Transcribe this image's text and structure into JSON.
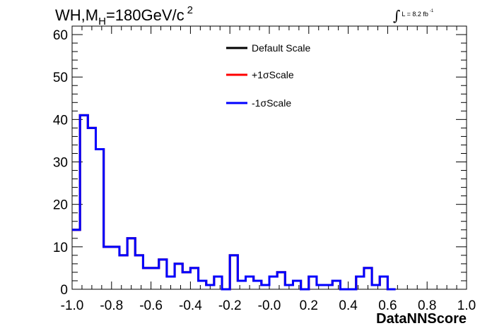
{
  "chart_data": {
    "type": "line",
    "title_main": "WH,M",
    "title_sub": "H",
    "title_rest": "=180GeV/c",
    "title_sup": "2",
    "lumi_text": "L = 8.2 fb",
    "lumi_sup": "-1",
    "xlabel": "DataNNScore",
    "ylabel": "",
    "xlim": [
      -1.0,
      1.0
    ],
    "ylim": [
      0,
      62
    ],
    "xticks": [
      "-1.0",
      "-0.8",
      "-0.6",
      "-0.4",
      "-0.2",
      "-0.0",
      "0.2",
      "0.4",
      "0.6",
      "0.8",
      "1.0"
    ],
    "yticks": [
      "0",
      "10",
      "20",
      "30",
      "40",
      "50",
      "60"
    ],
    "bin_edges_start": -1.0,
    "bin_width": 0.04,
    "legend_position": "top-center",
    "series": [
      {
        "name": "Default Scale",
        "color": "#000000",
        "values": [
          14,
          41,
          38,
          33,
          10,
          10,
          8,
          12,
          8,
          5,
          5,
          7,
          3,
          6,
          4,
          5,
          2,
          1,
          3,
          0,
          8,
          2,
          3,
          2,
          1,
          3,
          4,
          1,
          2,
          0,
          3,
          1,
          1,
          2,
          0,
          0,
          3,
          5,
          1,
          3,
          0
        ]
      },
      {
        "name": "+1σScale",
        "color": "#ff0000",
        "values": [
          14,
          41,
          38,
          33,
          10,
          10,
          8,
          12,
          8,
          5,
          5,
          7,
          3,
          6,
          4,
          5,
          2,
          1,
          3,
          0,
          8,
          2,
          3,
          2,
          1,
          3,
          4,
          1,
          2,
          0,
          3,
          1,
          1,
          2,
          0,
          0,
          3,
          5,
          1,
          3,
          0
        ]
      },
      {
        "name": "-1σScale",
        "color": "#0000ff",
        "values": [
          14,
          41,
          38,
          33,
          10,
          10,
          8,
          12,
          8,
          5,
          5,
          7,
          3,
          6,
          4,
          5,
          2,
          1,
          3,
          0,
          8,
          2,
          3,
          2,
          1,
          3,
          4,
          1,
          2,
          0,
          3,
          1,
          1,
          2,
          0,
          0,
          3,
          5,
          1,
          3,
          0
        ]
      }
    ]
  }
}
